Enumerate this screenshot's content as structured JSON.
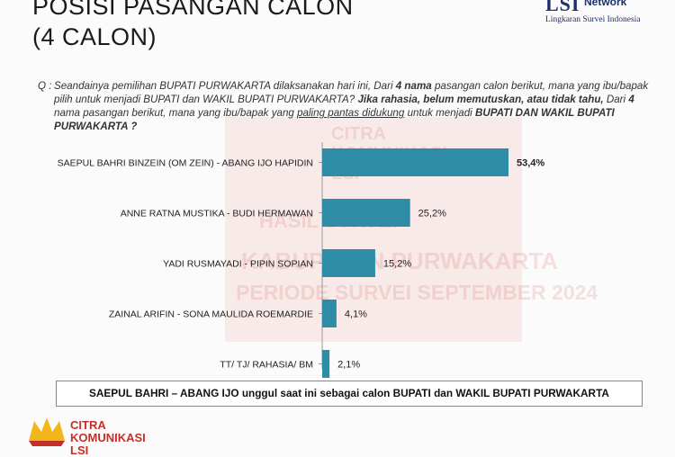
{
  "header": {
    "title_line1": "POSISI PASANGAN CALON",
    "title_line2": "(4 CALON)",
    "logo": {
      "brand": "LSI",
      "network": "Network",
      "subtitle": "Lingkaran Survei Indonesia",
      "color": "#1f2f6a"
    }
  },
  "question": {
    "label": "Q :",
    "part1": "Seandainya pemilihan BUPATI PURWAKARTA dilaksanakan hari ini,",
    "part2": " Dari ",
    "part3": "4 nama",
    "part4": " pasangan calon berikut, mana yang ibu/bapak pilih untuk menjadi BUPATI dan WAKIL BUPATI PURWAKARTA? ",
    "part5": "Jika rahasia, belum memutuskan, atau tidak tahu,",
    "part6": " Dari ",
    "part7": "4",
    "part8": " nama pasangan berikut, mana yang ibu/bapak yang ",
    "part9": "paling pantas didukung",
    "part10": " untuk menjadi ",
    "part11": "BUPATI  DAN WAKIL BUPATI PURWAKARTA ?"
  },
  "watermark": {
    "line1": "CITRA",
    "line2": "KOMUNIKASI",
    "line3": "LSI",
    "line4": "HASIL SURVEI",
    "line5": "KABUPATEN PURWAKARTA",
    "line6": "PERIODE SURVEI SEPTEMBER 2024"
  },
  "chart_data": {
    "type": "bar",
    "orientation": "horizontal",
    "categories": [
      "SAEPUL BAHRI BINZEIN (OM ZEIN) - ABANG IJO HAPIDIN",
      "ANNE RATNA MUSTIKA - BUDI HERMAWAN",
      "YADI RUSMAYADI - PIPIN SOPIAN",
      "ZAINAL ARIFIN - SONA MAULIDA ROEMARDIE",
      "TT/ TJ/ RAHASIA/ BM"
    ],
    "values": [
      53.4,
      25.2,
      15.2,
      4.1,
      2.1
    ],
    "labels": [
      "53,4%",
      "25,2%",
      "15,2%",
      "4,1%",
      "2,1%"
    ],
    "xlim": [
      0,
      55
    ],
    "bar_color": "#2f8ca7",
    "title": "",
    "xlabel": "",
    "ylabel": ""
  },
  "summary": "SAEPUL BAHRI – ABANG IJO unggul saat ini sebagai calon BUPATI dan WAKIL BUPATI PURWAKARTA",
  "footer_logo": {
    "line1": "CITRA",
    "line2": "KOMUNIKASI",
    "line3": "LSI",
    "color": "#c3302a"
  }
}
